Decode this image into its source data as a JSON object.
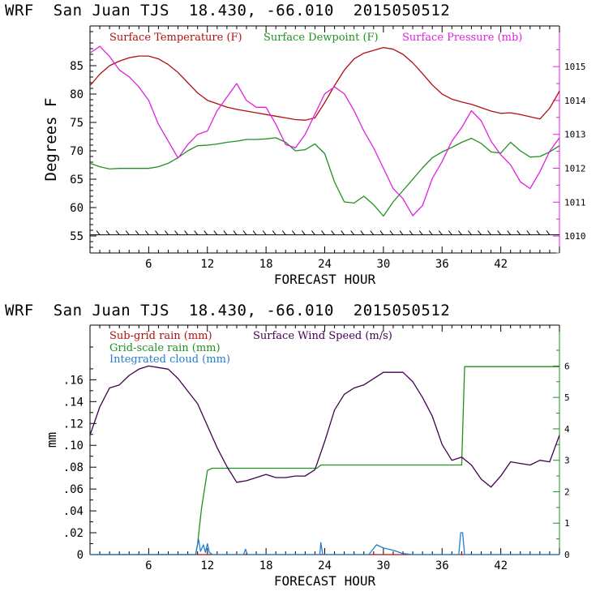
{
  "header_top": "WRF  San Juan TJS  18.430, -66.010  2015050512",
  "header_bottom": "WRF  San Juan TJS  18.430, -66.010  2015050512",
  "colors": {
    "temperature": "#b01010",
    "dewpoint": "#209020",
    "pressure": "#e020e0",
    "subgrid_rain": "#b01010",
    "gridscale_rain": "#209020",
    "cloud": "#1f7fd0",
    "wind": "#400050"
  },
  "chart_data": [
    {
      "type": "line",
      "xlabel": "FORECAST HOUR",
      "ylabel": "Degrees F",
      "xlim": [
        0,
        48
      ],
      "ylim": [
        52,
        92
      ],
      "y2lim": [
        1009.5,
        1016.2
      ],
      "xticks": [
        6,
        12,
        18,
        24,
        30,
        36,
        42
      ],
      "yticks": [
        55,
        60,
        65,
        70,
        75,
        80,
        85
      ],
      "y2ticks": [
        1010,
        1011,
        1012,
        1013,
        1014,
        1015
      ],
      "legend_placement": "top",
      "series": [
        {
          "name": "Surface Temperature (F)",
          "axis": "left",
          "x": [
            0,
            1,
            2,
            3,
            4,
            5,
            6,
            7,
            8,
            9,
            10,
            11,
            12,
            13,
            14,
            15,
            16,
            17,
            18,
            19,
            20,
            21,
            22,
            23,
            24,
            25,
            26,
            27,
            28,
            29,
            30,
            31,
            32,
            33,
            34,
            35,
            36,
            37,
            38,
            39,
            40,
            41,
            42,
            43,
            44,
            45,
            46,
            47,
            48
          ],
          "y": [
            81.5,
            83.5,
            85.0,
            85.8,
            86.4,
            86.7,
            86.7,
            86.2,
            85.2,
            83.8,
            82.0,
            80.2,
            78.9,
            78.3,
            77.7,
            77.3,
            77.0,
            76.7,
            76.4,
            76.1,
            75.8,
            75.5,
            75.4,
            75.8,
            78.5,
            81.5,
            84.2,
            86.2,
            87.2,
            87.7,
            88.2,
            87.9,
            87.0,
            85.5,
            83.6,
            81.6,
            80.0,
            79.1,
            78.6,
            78.2,
            77.6,
            77.0,
            76.6,
            76.7,
            76.4,
            76.0,
            75.6,
            77.5,
            80.5
          ]
        },
        {
          "name": "Surface Dewpoint (F)",
          "axis": "left",
          "x": [
            0,
            1,
            2,
            3,
            4,
            5,
            6,
            7,
            8,
            9,
            10,
            11,
            12,
            13,
            14,
            15,
            16,
            17,
            18,
            19,
            20,
            21,
            22,
            23,
            24,
            25,
            26,
            27,
            28,
            29,
            30,
            31,
            32,
            33,
            34,
            35,
            36,
            37,
            38,
            39,
            40,
            41,
            42,
            43,
            44,
            45,
            46,
            47,
            48
          ],
          "y": [
            67.8,
            67.2,
            66.8,
            66.9,
            66.9,
            66.9,
            66.9,
            67.2,
            67.8,
            68.8,
            70.0,
            70.9,
            71.0,
            71.2,
            71.5,
            71.7,
            72.0,
            72.0,
            72.1,
            72.3,
            71.5,
            70.0,
            70.2,
            71.2,
            69.5,
            64.5,
            61.0,
            60.8,
            62.0,
            60.5,
            58.5,
            61.0,
            63.0,
            65.0,
            67.0,
            68.8,
            69.8,
            70.6,
            71.5,
            72.2,
            71.3,
            69.8,
            69.6,
            71.5,
            70.0,
            68.9,
            69.0,
            69.8,
            70.9
          ]
        },
        {
          "name": "Surface Pressure (mb)",
          "axis": "right",
          "x": [
            0,
            1,
            2,
            3,
            4,
            5,
            6,
            7,
            8,
            9,
            10,
            11,
            12,
            13,
            14,
            15,
            16,
            17,
            18,
            19,
            20,
            21,
            22,
            23,
            24,
            25,
            26,
            27,
            28,
            29,
            30,
            31,
            32,
            33,
            34,
            35,
            36,
            37,
            38,
            39,
            40,
            41,
            42,
            43,
            44,
            45,
            46,
            47,
            48
          ],
          "y": [
            1015.4,
            1015.6,
            1015.3,
            1014.9,
            1014.7,
            1014.4,
            1014.0,
            1013.3,
            1012.8,
            1012.3,
            1012.7,
            1013.0,
            1013.1,
            1013.7,
            1014.1,
            1014.5,
            1014.0,
            1013.8,
            1013.8,
            1013.3,
            1012.7,
            1012.6,
            1013.0,
            1013.6,
            1014.2,
            1014.4,
            1014.2,
            1013.7,
            1013.1,
            1012.6,
            1012.0,
            1011.4,
            1011.1,
            1010.6,
            1010.9,
            1011.7,
            1012.2,
            1012.8,
            1013.2,
            1013.7,
            1013.4,
            1012.8,
            1012.4,
            1012.1,
            1011.6,
            1011.4,
            1011.9,
            1012.5,
            1012.9
          ]
        },
        {
          "name": "Wind barbs",
          "axis": "left",
          "x": [
            0,
            48
          ],
          "y": [
            55.2,
            55.2
          ]
        }
      ]
    },
    {
      "type": "line",
      "xlabel": "FORECAST HOUR",
      "ylabel": "mm",
      "xlim": [
        0,
        48
      ],
      "ylim": [
        0,
        0.21
      ],
      "y2lim": [
        0,
        7.3
      ],
      "xticks": [
        6,
        12,
        18,
        24,
        30,
        36,
        42
      ],
      "ytick_labels": [
        "0",
        ".02",
        ".04",
        ".06",
        ".08",
        ".10",
        ".12",
        ".14",
        ".16"
      ],
      "yticks": [
        0,
        0.02,
        0.04,
        0.06,
        0.08,
        0.1,
        0.12,
        0.14,
        0.16
      ],
      "y2ticks": [
        0,
        1,
        2,
        3,
        4,
        5,
        6
      ],
      "legend_placement": "top-left",
      "series": [
        {
          "name": "Sub-grid rain (mm)",
          "axis": "left",
          "x": [
            0,
            48
          ],
          "y": [
            0,
            0
          ]
        },
        {
          "name": "Grid-scale rain (mm)",
          "axis": "left",
          "x": [
            0,
            10.8,
            11.0,
            11.4,
            12.0,
            12.5,
            16,
            20,
            22.5,
            23.2,
            23.6,
            35,
            37.5,
            38.0,
            38.3,
            42,
            48
          ],
          "y": [
            0,
            0,
            0.01,
            0.042,
            0.077,
            0.079,
            0.079,
            0.079,
            0.079,
            0.079,
            0.082,
            0.082,
            0.082,
            0.082,
            0.172,
            0.172,
            0.172
          ]
        },
        {
          "name": "Integrated cloud (mm)",
          "axis": "left",
          "x": [
            0,
            10.8,
            11.1,
            11.3,
            11.6,
            11.8,
            12.0,
            12.2,
            12.5,
            15.7,
            15.9,
            16.1,
            23.5,
            23.6,
            23.8,
            28.5,
            29.3,
            30,
            31,
            32,
            33,
            37.7,
            37.9,
            38.1,
            38.3,
            48
          ],
          "y": [
            0,
            0,
            0.014,
            0.003,
            0.009,
            0.002,
            0.01,
            0.002,
            0,
            0,
            0.005,
            0,
            0,
            0.011,
            0,
            0,
            0.009,
            0.006,
            0.004,
            0.001,
            0,
            0,
            0.02,
            0.02,
            0,
            0
          ]
        },
        {
          "name": "Surface Wind Speed (m/s)",
          "axis": "right",
          "x": [
            0,
            1,
            2,
            3,
            4,
            5,
            6,
            7,
            8,
            9,
            10,
            11,
            12,
            13,
            14,
            15,
            16,
            17,
            18,
            19,
            20,
            21,
            22,
            23,
            24,
            25,
            26,
            27,
            28,
            29,
            30,
            31,
            32,
            33,
            34,
            35,
            36,
            37,
            38,
            39,
            40,
            41,
            42,
            43,
            44,
            45,
            46,
            47,
            48
          ],
          "y": [
            3.8,
            4.7,
            5.3,
            5.4,
            5.7,
            5.9,
            6.0,
            5.95,
            5.9,
            5.6,
            5.2,
            4.8,
            4.1,
            3.4,
            2.8,
            2.3,
            2.35,
            2.45,
            2.55,
            2.45,
            2.45,
            2.5,
            2.5,
            2.7,
            3.6,
            4.6,
            5.1,
            5.3,
            5.4,
            5.6,
            5.8,
            5.8,
            5.8,
            5.5,
            5.0,
            4.4,
            3.5,
            3.0,
            3.1,
            2.85,
            2.4,
            2.15,
            2.5,
            2.95,
            2.9,
            2.85,
            3.0,
            2.95,
            3.8
          ]
        }
      ]
    }
  ]
}
